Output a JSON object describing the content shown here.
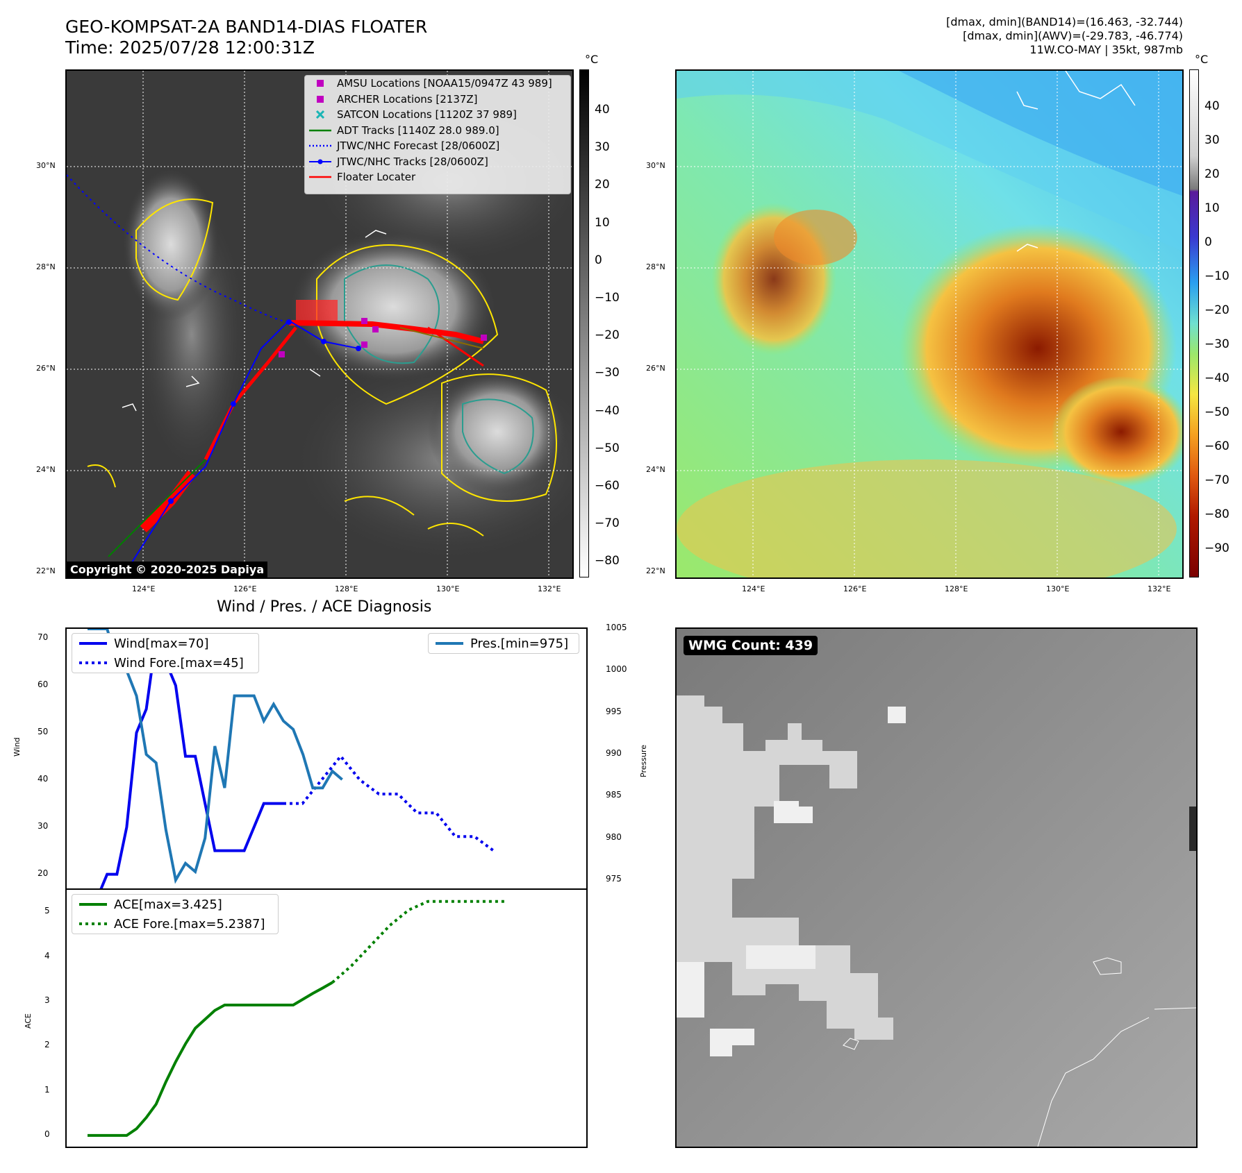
{
  "header": {
    "title_line1": "GEO-KOMPSAT-2A BAND14-DIAS FLOATER",
    "title_line2": "Time: 2025/07/28 12:00:31Z",
    "right_line1": "[dmax, dmin](BAND14)=(16.463, -32.744)",
    "right_line2": "[dmax, dmin](AWV)=(-29.783, -46.774)",
    "right_line3": "11W.CO-MAY | 35kt, 987mb"
  },
  "map": {
    "lat_labels": [
      "30°N",
      "28°N",
      "26°N",
      "24°N",
      "22°N"
    ],
    "lon_labels": [
      "124°E",
      "126°E",
      "128°E",
      "130°E",
      "132°E"
    ],
    "copyright": "Copyright © 2020-2025 Dapiya",
    "legend": [
      {
        "label": "AMSU Locations [NOAA15/0947Z 43 989]",
        "symbol": "square",
        "color": "#c000c0"
      },
      {
        "label": "ARCHER Locations [2137Z]",
        "symbol": "square",
        "color": "#c000c0"
      },
      {
        "label": "SATCON Locations [1120Z 37 989]",
        "symbol": "x",
        "color": "#1bb5b5"
      },
      {
        "label": "ADT Tracks [1140Z 28.0 989.0]",
        "symbol": "line",
        "color": "#008000"
      },
      {
        "label": "JTWC/NHC Forecast [28/0600Z]",
        "symbol": "dotted",
        "color": "#0000ff"
      },
      {
        "label": "JTWC/NHC Tracks [28/0600Z]",
        "symbol": "line-dot",
        "color": "#0000ff"
      },
      {
        "label": "Floater Locater",
        "symbol": "line",
        "color": "#ff0000"
      }
    ]
  },
  "colorbars": {
    "unit": "°C",
    "left_ticks": [
      "40",
      "30",
      "20",
      "10",
      "0",
      "−10",
      "−20",
      "−30",
      "−40",
      "−50",
      "−60",
      "−70",
      "−80"
    ],
    "right_ticks": [
      "40",
      "30",
      "20",
      "10",
      "0",
      "−10",
      "−20",
      "−30",
      "−40",
      "−50",
      "−60",
      "−70",
      "−80",
      "−90"
    ]
  },
  "wmg": {
    "label": "WMG Count: 439"
  },
  "colors": {
    "wind": "#0000ee",
    "pressure": "#1f77b4",
    "ace": "#008000"
  },
  "chart_data": [
    {
      "type": "line",
      "title": "Wind / Pres. / ACE Diagnosis",
      "ylabel": "Wind",
      "y2label": "Pressure",
      "ylim": [
        17,
        72
      ],
      "y2lim": [
        974,
        1005
      ],
      "yticks": [
        "70",
        "60",
        "50",
        "40",
        "30",
        "20"
      ],
      "y2ticks": [
        "1005",
        "1000",
        "995",
        "990",
        "985",
        "980",
        "975"
      ],
      "series": [
        {
          "name": "Wind[max=70]",
          "style": "solid",
          "axis": "left",
          "color": "#0000ee",
          "values": [
            15,
            15,
            20,
            20,
            30,
            50,
            55,
            70,
            65,
            60,
            45,
            45,
            35,
            25,
            25,
            25,
            25,
            30,
            35,
            35,
            35,
            null,
            null,
            null,
            null,
            null,
            null,
            null,
            null,
            null,
            null,
            null,
            null,
            null,
            null,
            null,
            null,
            null,
            null,
            null,
            null,
            null,
            null,
            null,
            null,
            null,
            null,
            null,
            null,
            null
          ]
        },
        {
          "name": "Wind Fore.[max=45]",
          "style": "dotted",
          "axis": "left",
          "color": "#0000ee",
          "values": [
            35,
            35,
            40,
            45,
            40,
            37,
            37,
            33,
            33,
            28,
            28,
            25
          ]
        },
        {
          "name": "Pres.[min=975]",
          "style": "solid",
          "axis": "right",
          "color": "#1f77b4",
          "values": [
            1005,
            1005,
            1005,
            1001,
            1000,
            997,
            990,
            989,
            981,
            975,
            977,
            976,
            980,
            991,
            986,
            997,
            997,
            997,
            994,
            996,
            994,
            993,
            990,
            986,
            986,
            988,
            987
          ]
        }
      ]
    },
    {
      "type": "line",
      "ylabel": "ACE",
      "ylim": [
        -0.25,
        5.5
      ],
      "yticks": [
        "5",
        "4",
        "3",
        "2",
        "1",
        "0"
      ],
      "series": [
        {
          "name": "ACE[max=3.425]",
          "style": "solid",
          "color": "#008000",
          "values": [
            0,
            0,
            0,
            0,
            0,
            0.15,
            0.4,
            0.7,
            1.2,
            1.65,
            2.05,
            2.4,
            2.6,
            2.8,
            2.92,
            2.92,
            2.92,
            2.92,
            2.92,
            2.92,
            2.92,
            2.92,
            3.05,
            3.18,
            3.3,
            3.425
          ]
        },
        {
          "name": "ACE Fore.[max=5.2387]",
          "style": "dotted",
          "color": "#008000",
          "values": [
            3.425,
            3.8,
            4.25,
            4.7,
            5.05,
            5.24,
            5.24,
            5.24,
            5.24,
            5.24
          ]
        }
      ]
    }
  ]
}
